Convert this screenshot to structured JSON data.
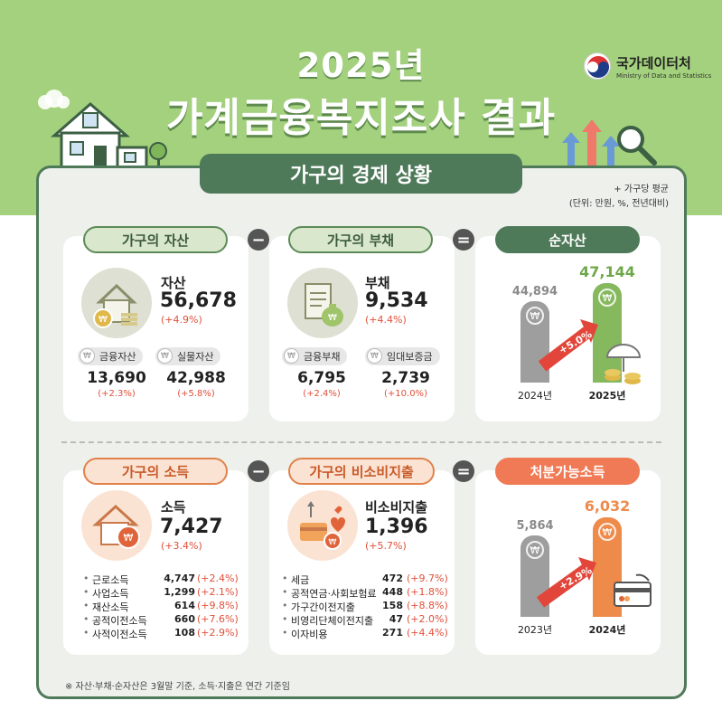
{
  "header": {
    "year": "2025년",
    "title": "가계금융복지조사 결과",
    "logo_name": "국가데이터처",
    "logo_sub": "Ministry of Data and Statistics"
  },
  "section_title": "가구의 경제 상황",
  "notes": [
    "+ 가구당 평균",
    "(단위: 만원, %, 전년대비)"
  ],
  "operators": {
    "minus": "−",
    "equals": "="
  },
  "assets": {
    "pill": "가구의 자산",
    "label": "자산",
    "value": "56,678",
    "change": "(+4.9%)",
    "items": [
      {
        "label": "금융자산",
        "value": "13,690",
        "change": "(+2.3%)"
      },
      {
        "label": "실물자산",
        "value": "42,988",
        "change": "(+5.8%)"
      }
    ]
  },
  "debt": {
    "pill": "가구의 부채",
    "label": "부채",
    "value": "9,534",
    "change": "(+4.4%)",
    "items": [
      {
        "label": "금융부채",
        "value": "6,795",
        "change": "(+2.4%)"
      },
      {
        "label": "임대보증금",
        "value": "2,739",
        "change": "(+10.0%)"
      }
    ]
  },
  "net_assets": {
    "pill": "순자산",
    "bars": [
      {
        "year": "2024년",
        "value": "44,894",
        "num": 44894,
        "color": "#9e9e9e"
      },
      {
        "year": "2025년",
        "value": "47,144",
        "num": 47144,
        "color": "#86b85e"
      }
    ],
    "growth": "+5.0%"
  },
  "income": {
    "pill": "가구의 소득",
    "label": "소득",
    "value": "7,427",
    "change": "(+3.4%)",
    "items": [
      {
        "label": "근로소득",
        "value": "4,747",
        "change": "(+2.4%)"
      },
      {
        "label": "사업소득",
        "value": "1,299",
        "change": "(+2.1%)"
      },
      {
        "label": "재산소득",
        "value": "614",
        "change": "(+9.8%)"
      },
      {
        "label": "공적이전소득",
        "value": "660",
        "change": "(+7.6%)"
      },
      {
        "label": "사적이전소득",
        "value": "108",
        "change": "(+2.9%)"
      }
    ]
  },
  "non_consumption": {
    "pill": "가구의 비소비지출",
    "label": "비소비지출",
    "value": "1,396",
    "change": "(+5.7%)",
    "items": [
      {
        "label": "세금",
        "value": "472",
        "change": "(+9.7%)"
      },
      {
        "label": "공적연금·사회보험료",
        "value": "448",
        "change": "(+1.8%)"
      },
      {
        "label": "가구간이전지출",
        "value": "158",
        "change": "(+8.8%)"
      },
      {
        "label": "비영리단체이전지출",
        "value": "47",
        "change": "(+2.0%)"
      },
      {
        "label": "이자비용",
        "value": "271",
        "change": "(+4.4%)"
      }
    ]
  },
  "disposable": {
    "pill": "처분가능소득",
    "bars": [
      {
        "year": "2023년",
        "value": "5,864",
        "num": 5864,
        "color": "#9e9e9e"
      },
      {
        "year": "2024년",
        "value": "6,032",
        "num": 6032,
        "color": "#ee8a4a"
      }
    ],
    "growth": "+2.9%"
  },
  "footnote": "※ 자산·부채·순자산은 3월말 기준, 소득·지출은 연간 기준임",
  "colors": {
    "green_dark": "#4f7a5a",
    "orange": "#ef7a55",
    "red": "#e14f3a"
  }
}
